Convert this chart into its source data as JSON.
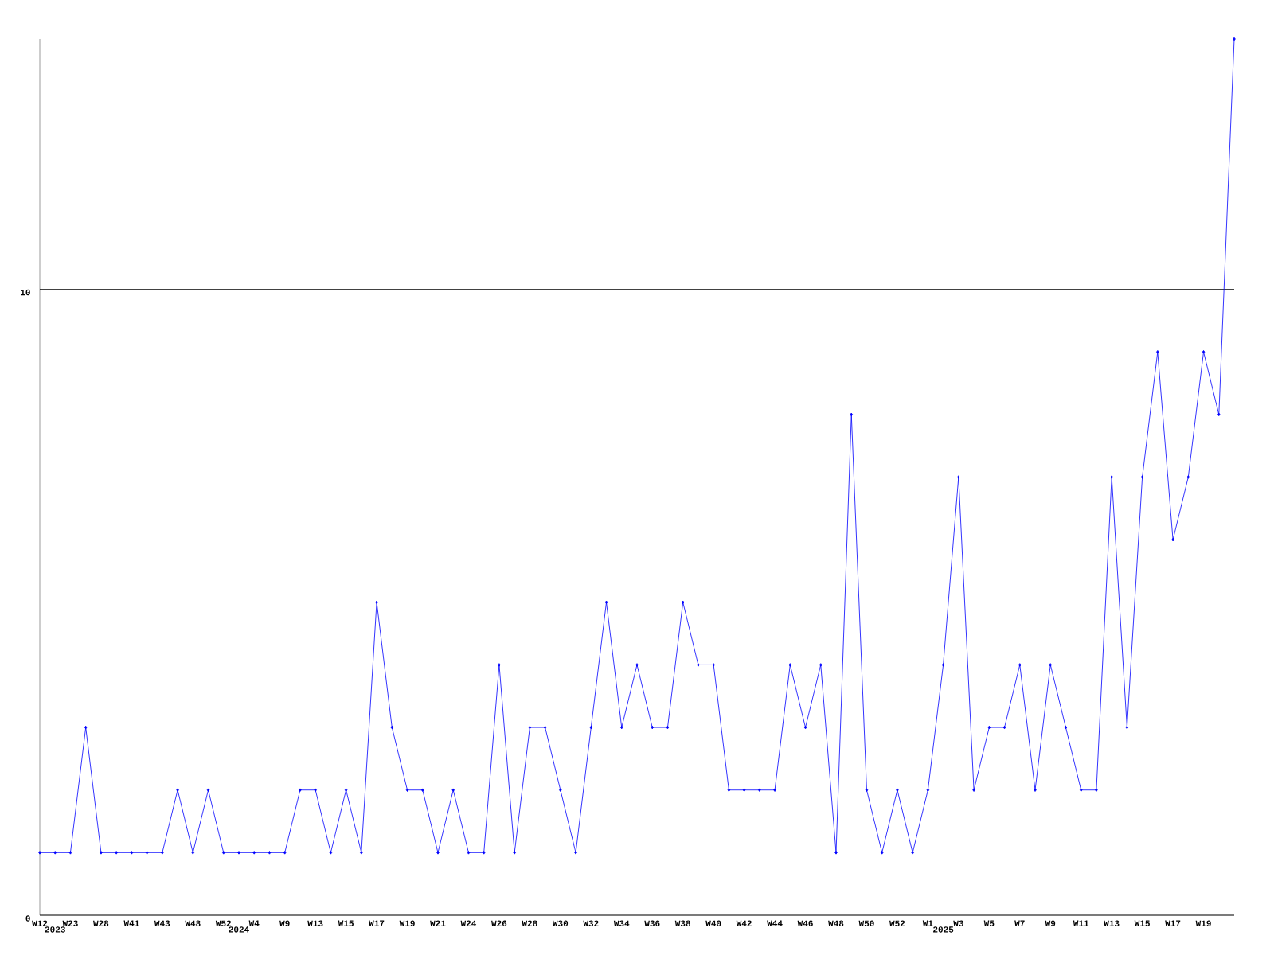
{
  "chart_data": {
    "type": "line",
    "categories": [
      "W12",
      "2023",
      "W23",
      null,
      "W28",
      null,
      "W41",
      null,
      "W43",
      null,
      "W48",
      null,
      "W52",
      "2024",
      "W4",
      null,
      "W9",
      null,
      "W13",
      null,
      "W15",
      null,
      "W17",
      null,
      "W19",
      null,
      "W21",
      null,
      "W24",
      null,
      "W26",
      null,
      "W28",
      null,
      "W30",
      null,
      "W32",
      null,
      "W34",
      null,
      "W36",
      null,
      "W38",
      null,
      "W40",
      null,
      "W42",
      null,
      "W44",
      null,
      "W46",
      null,
      "W48",
      null,
      "W50",
      null,
      "W52",
      null,
      "W1",
      "2025",
      "W3",
      null,
      "W5",
      null,
      "W7",
      null,
      "W9",
      null,
      "W11",
      null,
      "W13",
      null,
      "W15",
      null,
      "W17",
      null,
      "W19",
      null,
      null
    ],
    "values": [
      1,
      1,
      1,
      3,
      1,
      1,
      1,
      1,
      1,
      2,
      1,
      2,
      1,
      1,
      1,
      1,
      1,
      2,
      2,
      1,
      2,
      1,
      5,
      3,
      2,
      2,
      1,
      2,
      1,
      1,
      4,
      1,
      3,
      3,
      2,
      1,
      3,
      5,
      3,
      4,
      3,
      3,
      5,
      4,
      4,
      2,
      2,
      2,
      2,
      4,
      3,
      4,
      1,
      8,
      2,
      1,
      2,
      1,
      2,
      4,
      7,
      2,
      3,
      3,
      4,
      2,
      4,
      3,
      2,
      2,
      7,
      3,
      7,
      9,
      6,
      7,
      9,
      8,
      14
    ],
    "color": "#0000ff",
    "marker": "diamond",
    "grid": "y",
    "ylim": [
      0,
      14
    ],
    "yticks": [
      0,
      10
    ]
  }
}
